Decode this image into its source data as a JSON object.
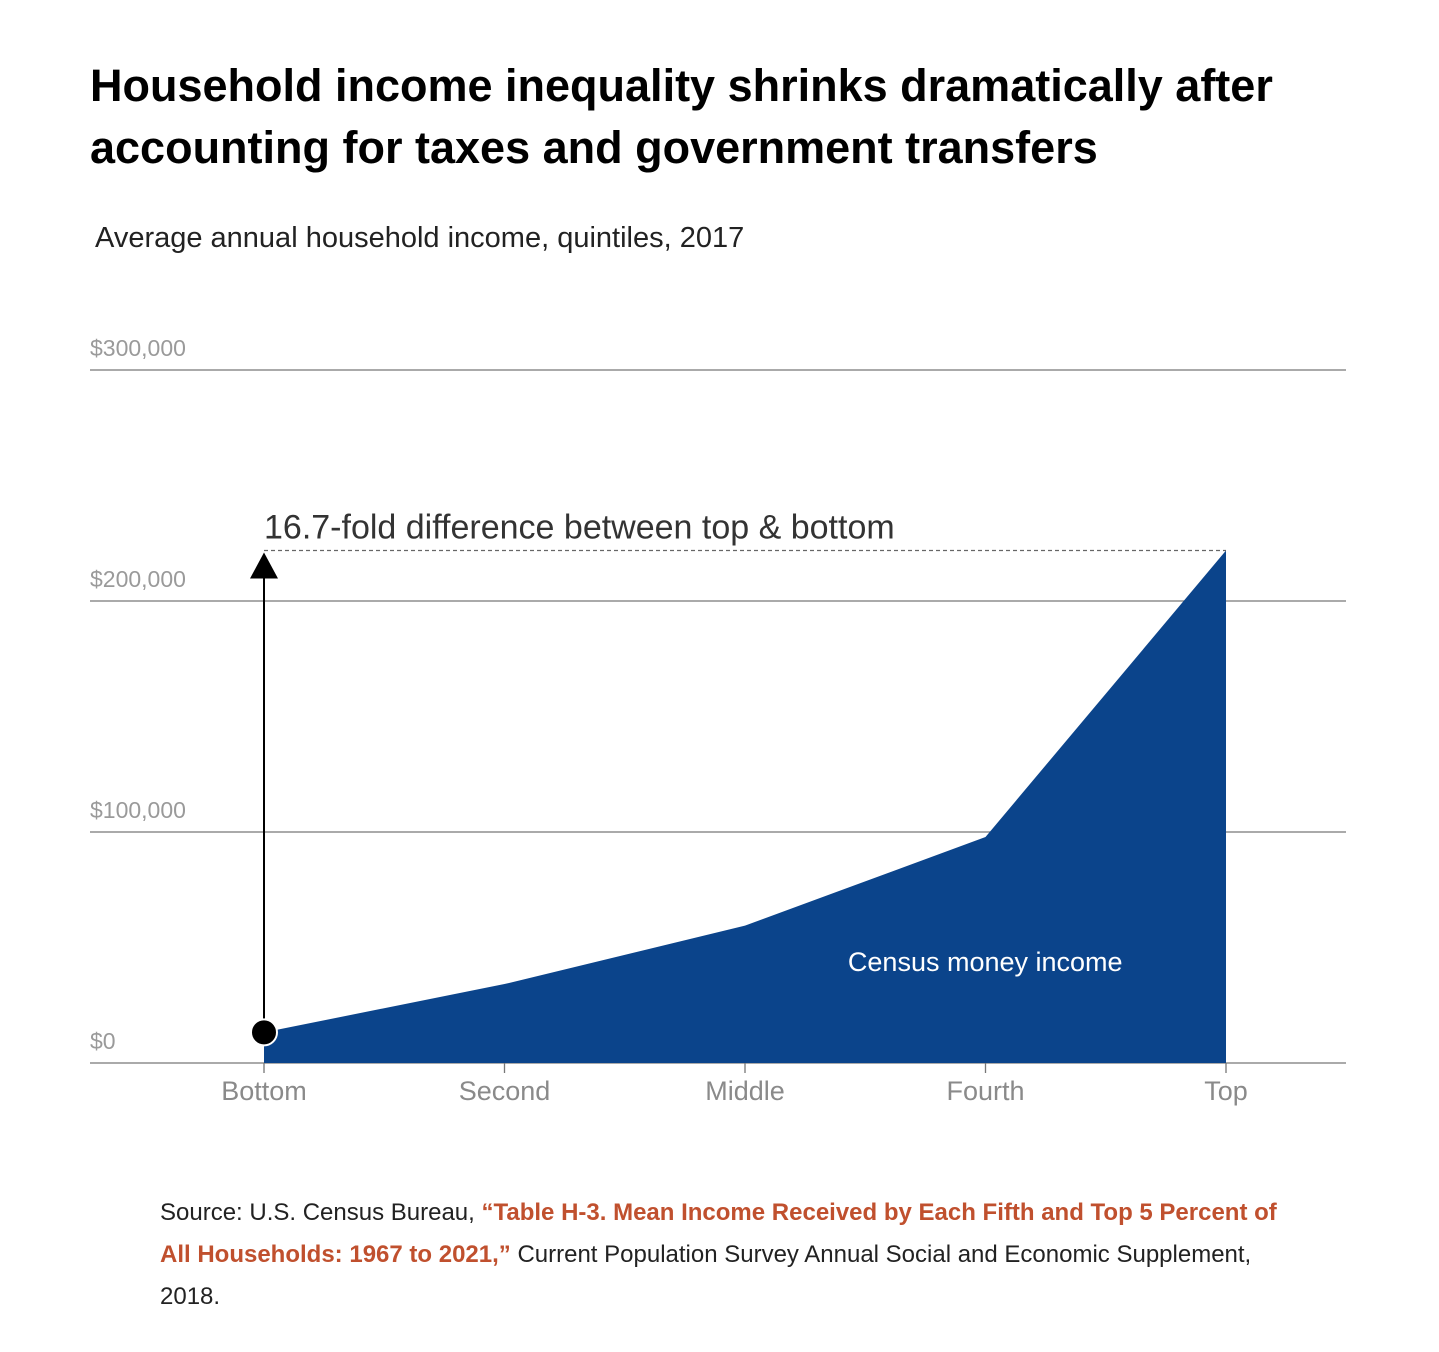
{
  "title": "Household income inequality shrinks dramatically after accounting for taxes and government transfers",
  "subtitle": "Average annual household income, quintiles, 2017",
  "source": {
    "prefix": "Source: U.S. Census Bureau, ",
    "link_text": "“Table H-3. Mean Income Received by Each Fifth and Top 5 Percent of All Households: 1967 to 2021,”",
    "suffix": " Current Population Survey Annual Social and Economic Supplement, 2018."
  },
  "colors": {
    "area": "#0b448b",
    "grid": "#777777",
    "tick_text": "#9a9a9a",
    "link": "#c0502e"
  },
  "chart_data": {
    "type": "area",
    "categories": [
      "Bottom",
      "Second",
      "Middle",
      "Fourth",
      "Top"
    ],
    "series": [
      {
        "name": "Census money income",
        "values": [
          13258,
          34181,
          59445,
          97850,
          221846
        ]
      }
    ],
    "ylim": [
      0,
      300000
    ],
    "yticks": [
      0,
      100000,
      200000,
      300000
    ],
    "ytick_labels": [
      "$0",
      "$100,000",
      "$200,000",
      "$300,000"
    ],
    "grid": true,
    "annotation": "16.7-fold difference between top & bottom"
  }
}
